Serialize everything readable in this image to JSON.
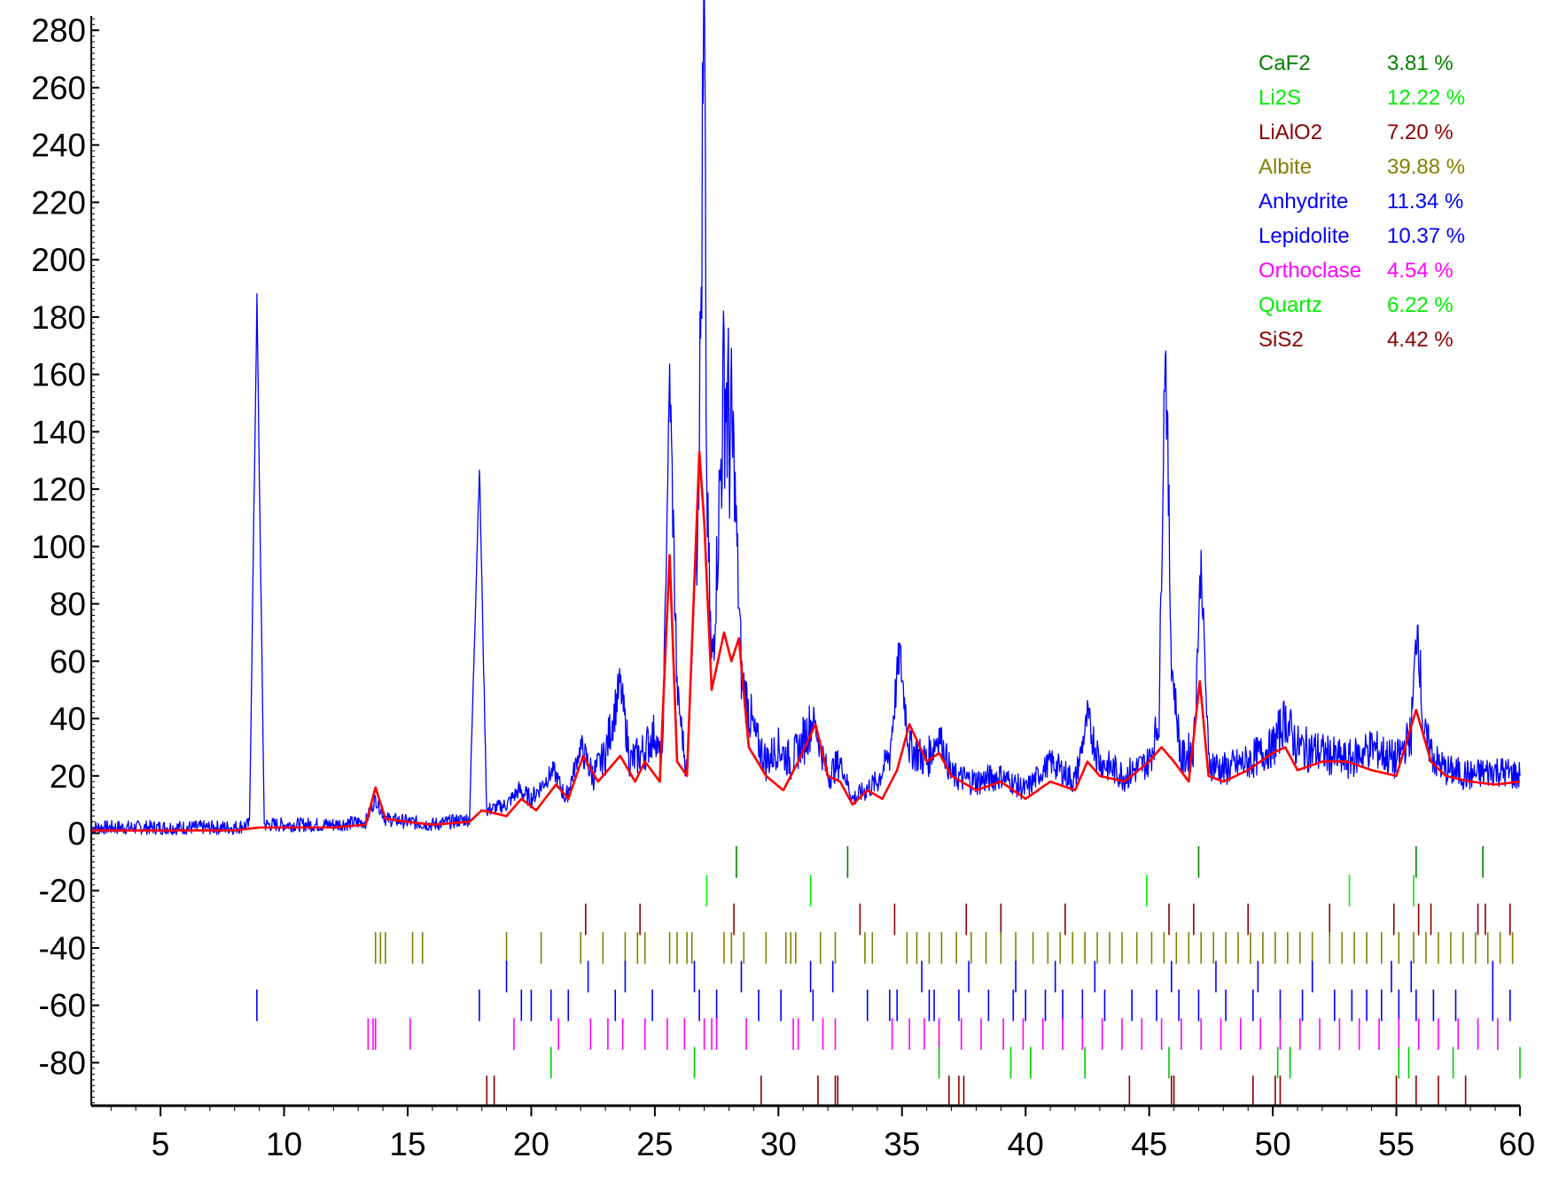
{
  "chart_data": {
    "type": "line",
    "xlim": [
      2.2,
      60
    ],
    "ylim": [
      -95,
      285
    ],
    "x_ticks": [
      5,
      10,
      15,
      20,
      25,
      30,
      35,
      40,
      45,
      50,
      55,
      60
    ],
    "x_tick_labels": [
      "5",
      "10",
      "15",
      "20",
      "25",
      "30",
      "35",
      "40",
      "45",
      "50",
      "55",
      "60"
    ],
    "y_ticks": [
      -80,
      -60,
      -40,
      -20,
      0,
      20,
      40,
      60,
      80,
      100,
      120,
      140,
      160,
      180,
      200,
      220,
      240,
      260,
      280
    ],
    "y_tick_labels": [
      "-80",
      "-60",
      "-40",
      "-20",
      "0",
      "20",
      "40",
      "60",
      "80",
      "100",
      "120",
      "140",
      "160",
      "180",
      "200",
      "220",
      "240",
      "260",
      "280"
    ],
    "grid": false,
    "legend_position": "top-right",
    "series": [
      {
        "color": "#0000ff",
        "x": [
          2.2,
          5,
          8,
          8.6,
          8.9,
          9.2,
          12,
          13.3,
          13.7,
          14.1,
          15,
          16,
          17.5,
          17.9,
          18.2,
          19,
          19.5,
          20,
          20.9,
          21.4,
          22,
          22.5,
          23,
          23.6,
          24,
          24.5,
          25,
          25.3,
          25.6,
          25.9,
          26.3,
          26.7,
          26.85,
          27.0,
          27.1,
          27.3,
          27.6,
          27.8,
          28.0,
          28.2,
          28.5,
          29,
          29.5,
          30,
          30.5,
          31,
          31.4,
          32,
          32.5,
          33,
          33.5,
          34,
          34.5,
          34.9,
          35.3,
          36,
          36.5,
          37,
          38,
          39,
          40,
          41,
          42,
          42.5,
          43,
          44,
          45,
          45.4,
          45.65,
          45.9,
          46.3,
          46.8,
          47.1,
          47.4,
          48,
          49,
          50,
          50.5,
          51,
          52,
          53,
          54,
          55,
          55.6,
          55.85,
          56.1,
          56.6,
          57,
          58,
          59,
          60
        ],
        "y": [
          2,
          2,
          2,
          3,
          186,
          3,
          3,
          4,
          12,
          5,
          4,
          3,
          5,
          128,
          8,
          10,
          15,
          12,
          22,
          12,
          30,
          20,
          28,
          52,
          25,
          28,
          35,
          22,
          160,
          50,
          20,
          110,
          170,
          284,
          120,
          55,
          110,
          162,
          140,
          130,
          55,
          35,
          25,
          30,
          25,
          32,
          40,
          20,
          25,
          12,
          15,
          18,
          28,
          63,
          30,
          25,
          35,
          20,
          18,
          20,
          15,
          25,
          18,
          40,
          25,
          20,
          25,
          40,
          176,
          60,
          25,
          30,
          95,
          25,
          22,
          25,
          30,
          40,
          30,
          28,
          25,
          30,
          25,
          35,
          75,
          35,
          25,
          22,
          20,
          22,
          20
        ]
      },
      {
        "color": "#ff0000",
        "x": [
          2.2,
          5,
          8,
          9,
          12,
          13.3,
          13.7,
          14.1,
          15,
          16,
          17.5,
          18,
          19,
          19.6,
          20.2,
          21,
          21.5,
          22.1,
          22.7,
          23.6,
          24.2,
          24.6,
          25.2,
          25.6,
          25.9,
          26.3,
          26.8,
          27.0,
          27.3,
          27.8,
          28.1,
          28.4,
          28.8,
          29.5,
          30.2,
          30.8,
          31.5,
          32,
          32.5,
          33,
          33.6,
          34.2,
          34.8,
          35.3,
          36,
          36.5,
          37,
          38,
          39,
          40,
          40.5,
          41,
          42,
          42.5,
          43,
          44,
          45,
          45.5,
          46,
          46.6,
          47.05,
          47.4,
          48,
          49,
          50,
          50.5,
          51,
          52,
          53,
          54,
          55,
          55.8,
          56.4,
          57,
          58,
          59,
          60
        ],
        "y": [
          1,
          1,
          1,
          2,
          2,
          3,
          16,
          5,
          4,
          3,
          4,
          8,
          6,
          12,
          8,
          17,
          12,
          27,
          18,
          27,
          18,
          25,
          18,
          97,
          25,
          20,
          133,
          108,
          50,
          70,
          60,
          68,
          30,
          20,
          15,
          25,
          38,
          20,
          18,
          10,
          15,
          12,
          22,
          38,
          25,
          28,
          20,
          15,
          18,
          12,
          15,
          18,
          15,
          25,
          20,
          18,
          25,
          30,
          25,
          18,
          53,
          20,
          18,
          22,
          28,
          30,
          22,
          25,
          25,
          22,
          20,
          43,
          25,
          20,
          18,
          17,
          18
        ]
      }
    ],
    "phase_markers": [
      {
        "color": "#008000",
        "y": -10,
        "x": [
          28.3,
          32.8,
          47.0,
          55.8,
          58.5
        ]
      },
      {
        "color": "#00ee00",
        "y": -20,
        "x": [
          27.1,
          31.3,
          44.9,
          53.1,
          55.7
        ]
      },
      {
        "color": "#8b0000",
        "y": -30,
        "x": [
          22.2,
          24.4,
          28.2,
          33.3,
          34.7,
          37.6,
          39.0,
          41.6,
          45.8,
          46.8,
          49.0,
          52.3,
          54.9,
          55.9,
          56.4,
          58.3,
          58.6,
          59.6
        ]
      },
      {
        "color": "#808000",
        "y": -40,
        "x": [
          13.7,
          13.9,
          14.1,
          15.2,
          15.6,
          19.0,
          20.4,
          22.0,
          22.9,
          23.8,
          24.3,
          24.6,
          25.6,
          25.9,
          26.3,
          26.5,
          27.8,
          28.1,
          28.6,
          29.5,
          30.3,
          30.5,
          30.7,
          31.7,
          32.3,
          33.5,
          33.8,
          35.2,
          35.6,
          36.1,
          36.6,
          37.2,
          37.8,
          38.4,
          39.0,
          39.6,
          40.3,
          40.9,
          41.4,
          41.9,
          42.4,
          42.9,
          43.4,
          43.9,
          44.5,
          45.1,
          45.6,
          46.1,
          46.6,
          47.1,
          47.6,
          48.1,
          48.6,
          49.1,
          49.6,
          50.1,
          50.6,
          51.1,
          51.6,
          52.3,
          52.8,
          53.3,
          53.8,
          54.4,
          55.1,
          55.7,
          56.2,
          56.7,
          57.2,
          57.7,
          58.2,
          58.7,
          59.2,
          59.7
        ]
      },
      {
        "color": "#0000ff",
        "y": -50,
        "x": [
          19.0,
          22.3,
          23.8,
          26.6,
          28.5,
          31.3,
          32.2,
          35.8,
          37.7,
          39.6,
          41.2,
          42.8,
          45.9,
          47.7,
          49.4,
          51.6,
          54.8,
          55.6,
          58.9
        ]
      },
      {
        "color": "#0000ff",
        "y": -60,
        "x": [
          8.9,
          17.9,
          19.6,
          20.0,
          20.8,
          21.5,
          23.4,
          24.9,
          26.8,
          27.5,
          29.2,
          30.1,
          31.4,
          33.6,
          34.5,
          34.8,
          36.1,
          36.3,
          37.3,
          38.5,
          39.5,
          40.0,
          40.8,
          41.5,
          42.3,
          43.2,
          44.3,
          45.3,
          46.2,
          47.0,
          48.1,
          49.2,
          50.3,
          51.2,
          52.5,
          53.2,
          53.8,
          54.4,
          55.1,
          55.8,
          56.5,
          57.4,
          58.9,
          59.6
        ]
      },
      {
        "color": "#ff00ff",
        "y": -70,
        "x": [
          13.4,
          13.6,
          13.7,
          15.1,
          19.3,
          21.1,
          22.4,
          23.1,
          23.7,
          24.6,
          25.5,
          26.2,
          27.0,
          27.3,
          27.5,
          28.7,
          30.6,
          30.8,
          31.8,
          32.3,
          34.6,
          35.3,
          35.9,
          36.5,
          37.4,
          38.2,
          39.1,
          39.9,
          40.7,
          41.5,
          42.3,
          43.1,
          43.9,
          44.7,
          45.5,
          46.3,
          47.1,
          47.9,
          48.7,
          49.5,
          50.3,
          51.1,
          51.9,
          52.7,
          53.5,
          54.3,
          55.1,
          55.9,
          56.7,
          57.5,
          58.3,
          59.1
        ]
      },
      {
        "color": "#00cc00",
        "y": -80,
        "x": [
          20.8,
          26.6,
          36.5,
          39.4,
          40.2,
          42.4,
          45.8,
          50.2,
          50.7,
          55.1,
          55.5,
          57.3,
          60.0
        ]
      },
      {
        "color": "#8b0000",
        "y": -90,
        "x": [
          18.2,
          18.5,
          29.3,
          31.6,
          32.3,
          32.4,
          36.9,
          37.3,
          37.5,
          44.2,
          45.9,
          46.0,
          49.2,
          50.1,
          50.3,
          55.0,
          55.8,
          56.7,
          57.8
        ]
      }
    ],
    "legend": [
      {
        "name": "CaF2",
        "percent": "3.81 %",
        "color": "#008000"
      },
      {
        "name": "Li2S",
        "percent": "12.22 %",
        "color": "#00ee00"
      },
      {
        "name": "LiAlO2",
        "percent": "7.20 %",
        "color": "#8b0000"
      },
      {
        "name": "Albite",
        "percent": "39.88 %",
        "color": "#808000"
      },
      {
        "name": "Anhydrite",
        "percent": "11.34 %",
        "color": "#0000ff"
      },
      {
        "name": "Lepidolite",
        "percent": "10.37 %",
        "color": "#0000ff"
      },
      {
        "name": "Orthoclase",
        "percent": "4.54 %",
        "color": "#ff00ff"
      },
      {
        "name": "Quartz",
        "percent": "6.22 %",
        "color": "#00ee00"
      },
      {
        "name": "SiS2",
        "percent": "4.42 %",
        "color": "#8b0000"
      }
    ]
  }
}
